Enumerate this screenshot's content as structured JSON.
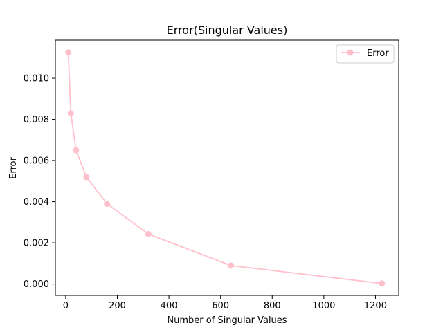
{
  "chart_data": {
    "type": "line",
    "title": "Error(Singular Values)",
    "xlabel": "Number of Singular Values",
    "ylabel": "Error",
    "xlim": [
      -40,
      1290
    ],
    "ylim": [
      -0.00055,
      0.01185
    ],
    "xticks": [
      0,
      200,
      400,
      600,
      800,
      1000,
      1200
    ],
    "xtick_labels": [
      "0",
      "200",
      "400",
      "600",
      "800",
      "1000",
      "1200"
    ],
    "yticks": [
      0.0,
      0.002,
      0.004,
      0.006,
      0.008,
      0.01
    ],
    "ytick_labels": [
      "0.000",
      "0.002",
      "0.004",
      "0.006",
      "0.008",
      "0.010"
    ],
    "grid": false,
    "legend_position": "top-right",
    "series": [
      {
        "name": "Error",
        "color": "#ffc0cb",
        "marker": "circle",
        "x": [
          10,
          20,
          40,
          80,
          160,
          320,
          640,
          1225
        ],
        "y": [
          0.01125,
          0.0083,
          0.0065,
          0.0052,
          0.0039,
          0.00243,
          0.0009,
          3e-05
        ]
      }
    ]
  }
}
